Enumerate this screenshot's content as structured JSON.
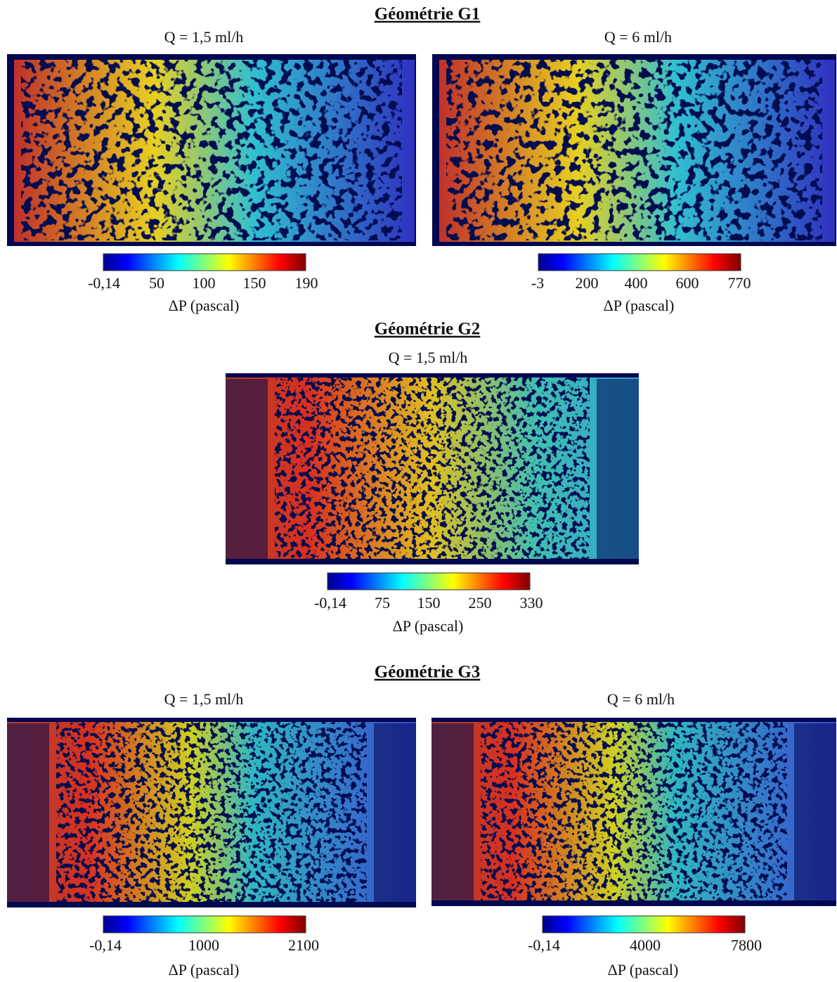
{
  "sections": [
    {
      "title": "Géométrie G1",
      "panels": [
        {
          "subtitle": "Q = 1,5 ml/h",
          "colorbar": {
            "ticks": [
              "-0,14",
              "50",
              "100",
              "150",
              "190"
            ],
            "label": "ΔP (pascal)"
          }
        },
        {
          "subtitle": "Q = 6 ml/h",
          "colorbar": {
            "ticks": [
              "-3",
              "200",
              "400",
              "600",
              "770"
            ],
            "label": "ΔP (pascal)"
          }
        }
      ]
    },
    {
      "title": "Géométrie G2",
      "panels": [
        {
          "subtitle": "Q = 1,5 ml/h",
          "colorbar": {
            "ticks": [
              "-0,14",
              "75",
              "150",
              "250",
              "330"
            ],
            "label": "ΔP (pascal)"
          }
        }
      ]
    },
    {
      "title": "Géométrie G3",
      "panels": [
        {
          "subtitle": "Q = 1,5 ml/h",
          "colorbar": {
            "ticks": [
              "-0,14",
              "1000",
              "2100"
            ],
            "label": "ΔP (pascal)"
          }
        },
        {
          "subtitle": "Q = 6 ml/h",
          "colorbar": {
            "ticks": [
              "-0,14",
              "4000",
              "7800"
            ],
            "label": "ΔP (pascal)"
          }
        }
      ]
    }
  ]
}
